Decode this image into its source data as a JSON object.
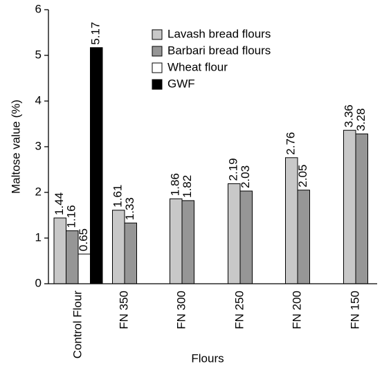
{
  "chart_data": {
    "type": "bar",
    "x_label": "Flours",
    "y_label": "Maltose value (%)",
    "categories": [
      "Control Flour",
      "FN 350",
      "FN 300",
      "FN 250",
      "FN 200",
      "FN 150"
    ],
    "series": [
      {
        "name": "Lavash bread flours",
        "color": "#c8c8c8",
        "values": [
          1.44,
          1.61,
          1.86,
          2.19,
          2.76,
          3.36
        ]
      },
      {
        "name": "Barbari bread flours",
        "color": "#969696",
        "values": [
          1.16,
          1.33,
          1.82,
          2.03,
          2.05,
          3.28
        ]
      },
      {
        "name": "Wheat flour",
        "color": "#ffffff",
        "values": [
          0.65,
          null,
          null,
          null,
          null,
          null
        ]
      },
      {
        "name": "GWF",
        "color": "#000000",
        "values": [
          5.17,
          null,
          null,
          null,
          null,
          null
        ]
      }
    ],
    "ylim": [
      0,
      6
    ],
    "yticks": [
      0,
      1,
      2,
      3,
      4,
      5,
      6
    ],
    "legend": "top"
  }
}
